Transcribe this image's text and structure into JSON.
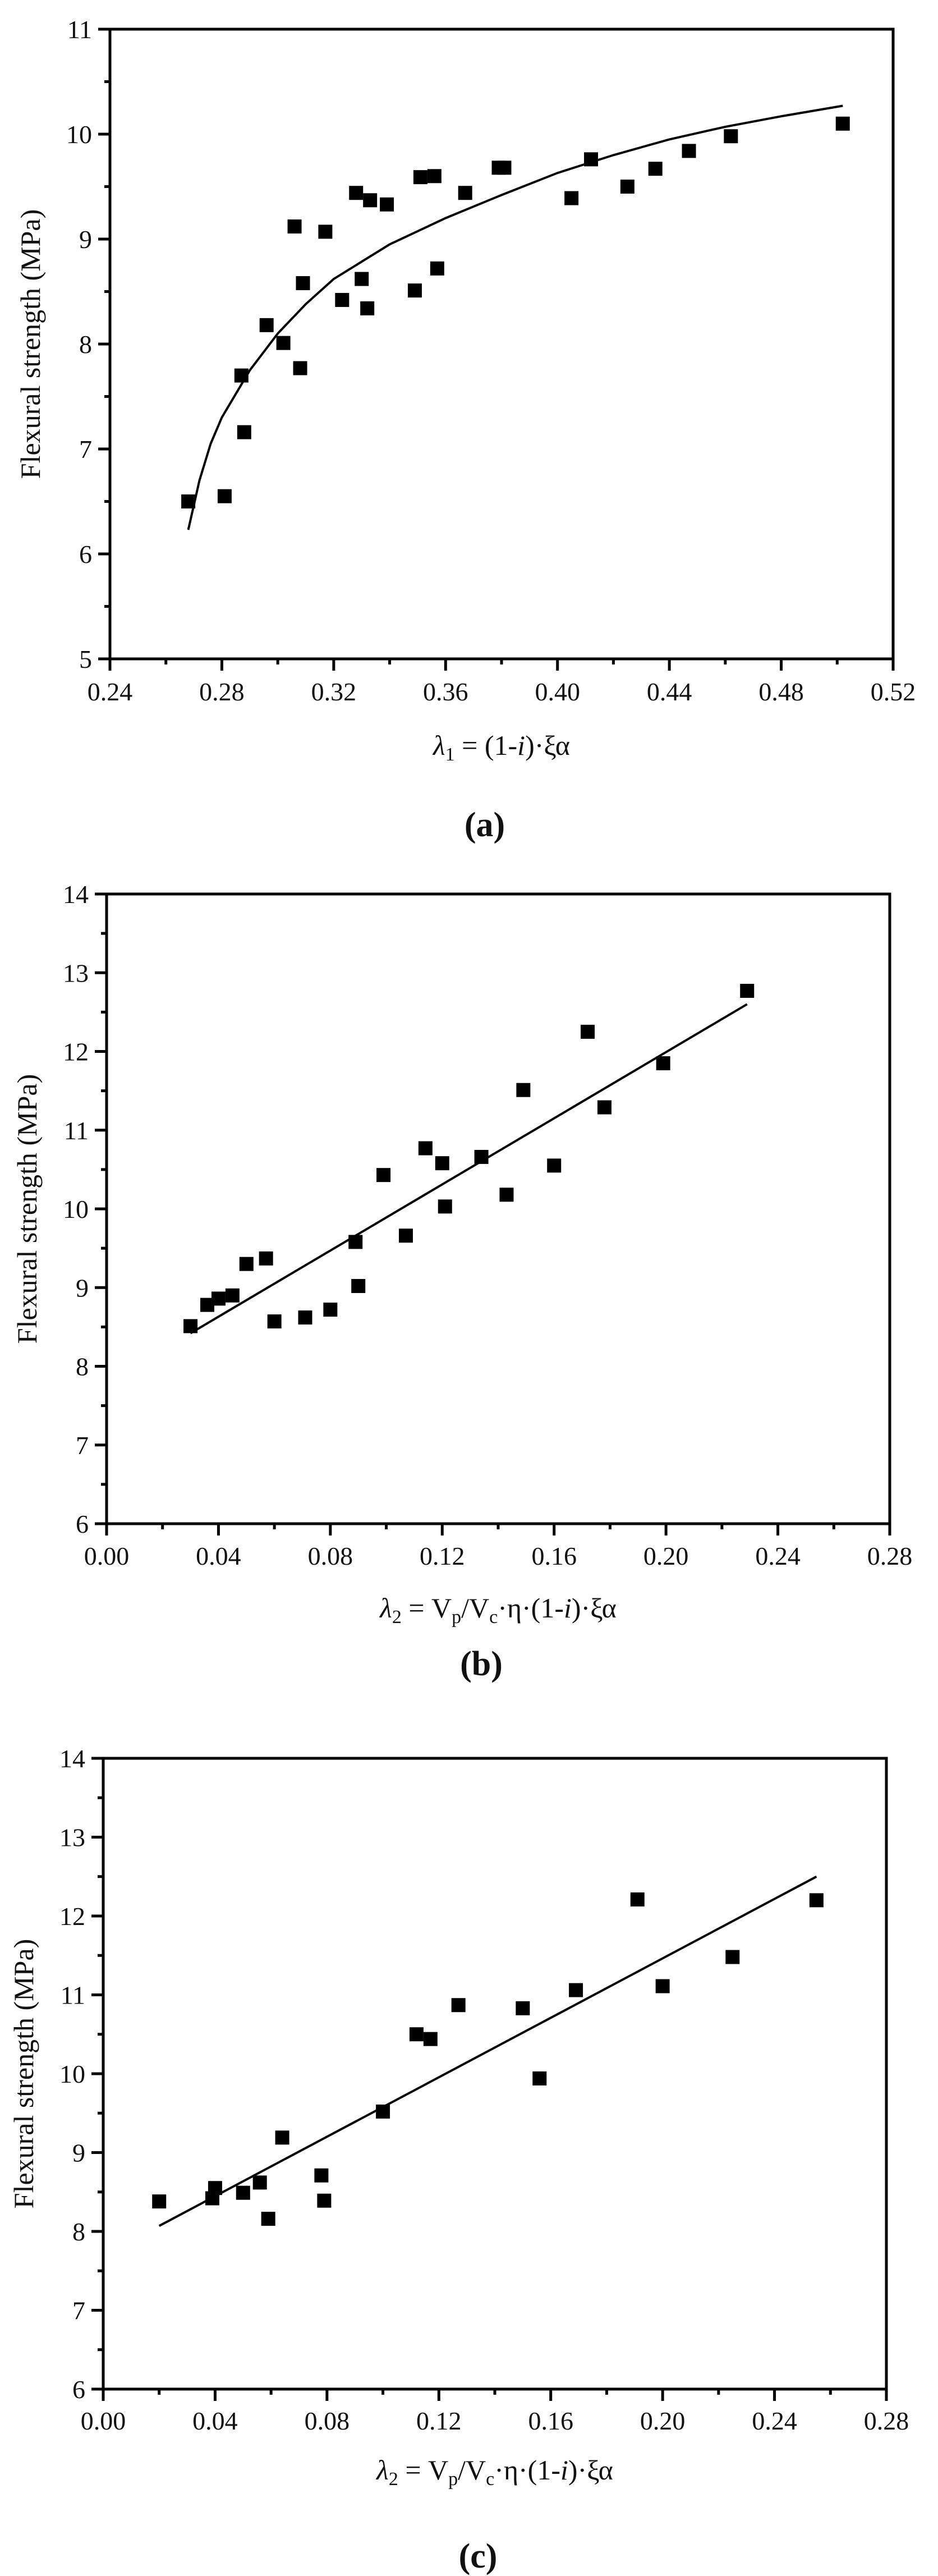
{
  "chart_data": [
    {
      "type": "scatter",
      "caption": "(a)",
      "ylabel": "Flexural strength (MPa)",
      "xlabel_parts": [
        {
          "t": "λ",
          "italic": true
        },
        {
          "t": "1",
          "sub": true
        },
        {
          "t": " = (1-"
        },
        {
          "t": "i",
          "italic": true
        },
        {
          "t": ")·ξα"
        }
      ],
      "xlim": [
        0.24,
        0.52
      ],
      "ylim": [
        5,
        11
      ],
      "xticks": [
        "0.24",
        "0.28",
        "0.32",
        "0.36",
        "0.40",
        "0.44",
        "0.48",
        "0.52"
      ],
      "yticks": [
        "5",
        "6",
        "7",
        "8",
        "9",
        "10",
        "11"
      ],
      "grid": false,
      "marker": "square",
      "color": "#000000",
      "points": [
        [
          0.268,
          6.5
        ],
        [
          0.281,
          6.55
        ],
        [
          0.287,
          7.7
        ],
        [
          0.288,
          7.16
        ],
        [
          0.296,
          8.18
        ],
        [
          0.302,
          8.01
        ],
        [
          0.306,
          9.12
        ],
        [
          0.308,
          7.77
        ],
        [
          0.309,
          8.58
        ],
        [
          0.317,
          9.07
        ],
        [
          0.323,
          8.42
        ],
        [
          0.328,
          9.44
        ],
        [
          0.33,
          8.62
        ],
        [
          0.333,
          9.37
        ],
        [
          0.332,
          8.34
        ],
        [
          0.339,
          9.33
        ],
        [
          0.349,
          8.51
        ],
        [
          0.351,
          9.59
        ],
        [
          0.356,
          9.6
        ],
        [
          0.357,
          8.72
        ],
        [
          0.367,
          9.44
        ],
        [
          0.379,
          9.68
        ],
        [
          0.381,
          9.68
        ],
        [
          0.405,
          9.39
        ],
        [
          0.412,
          9.76
        ],
        [
          0.425,
          9.5
        ],
        [
          0.435,
          9.67
        ],
        [
          0.447,
          9.84
        ],
        [
          0.462,
          9.98
        ],
        [
          0.502,
          10.1
        ]
      ],
      "fit_type": "curve",
      "fit": [
        [
          0.268,
          6.23
        ],
        [
          0.272,
          6.7
        ],
        [
          0.276,
          7.05
        ],
        [
          0.28,
          7.3
        ],
        [
          0.29,
          7.75
        ],
        [
          0.3,
          8.1
        ],
        [
          0.31,
          8.38
        ],
        [
          0.32,
          8.62
        ],
        [
          0.34,
          8.95
        ],
        [
          0.36,
          9.2
        ],
        [
          0.38,
          9.42
        ],
        [
          0.4,
          9.63
        ],
        [
          0.42,
          9.8
        ],
        [
          0.44,
          9.95
        ],
        [
          0.46,
          10.07
        ],
        [
          0.48,
          10.17
        ],
        [
          0.502,
          10.27
        ]
      ]
    },
    {
      "type": "scatter",
      "caption": "(b)",
      "ylabel": "Flexural strength (MPa)",
      "xlabel_parts": [
        {
          "t": "λ",
          "italic": true
        },
        {
          "t": "2",
          "sub": true
        },
        {
          "t": " = V"
        },
        {
          "t": "p",
          "sub": true
        },
        {
          "t": "/V"
        },
        {
          "t": "c",
          "sub": true
        },
        {
          "t": "·η·(1-"
        },
        {
          "t": "i",
          "italic": true
        },
        {
          "t": ")·ξα"
        }
      ],
      "xlim": [
        0.0,
        0.28
      ],
      "ylim": [
        6,
        14
      ],
      "xticks": [
        "0.00",
        "0.04",
        "0.08",
        "0.12",
        "0.16",
        "0.20",
        "0.24",
        "0.28"
      ],
      "yticks": [
        "6",
        "7",
        "8",
        "9",
        "10",
        "11",
        "12",
        "13",
        "14"
      ],
      "grid": false,
      "marker": "square",
      "color": "#000000",
      "points": [
        [
          0.03,
          8.51
        ],
        [
          0.036,
          8.78
        ],
        [
          0.04,
          8.86
        ],
        [
          0.045,
          8.9
        ],
        [
          0.05,
          9.3
        ],
        [
          0.057,
          9.37
        ],
        [
          0.06,
          8.57
        ],
        [
          0.071,
          8.62
        ],
        [
          0.08,
          8.72
        ],
        [
          0.089,
          9.58
        ],
        [
          0.09,
          9.02
        ],
        [
          0.099,
          10.43
        ],
        [
          0.107,
          9.66
        ],
        [
          0.114,
          10.77
        ],
        [
          0.12,
          10.58
        ],
        [
          0.121,
          10.03
        ],
        [
          0.134,
          10.66
        ],
        [
          0.143,
          10.18
        ],
        [
          0.149,
          11.51
        ],
        [
          0.16,
          10.55
        ],
        [
          0.172,
          12.25
        ],
        [
          0.178,
          11.29
        ],
        [
          0.199,
          11.85
        ],
        [
          0.229,
          12.77
        ]
      ],
      "fit_type": "line",
      "fit": [
        [
          0.03,
          8.42
        ],
        [
          0.229,
          12.6
        ]
      ]
    },
    {
      "type": "scatter",
      "caption": "(c)",
      "ylabel": "Flexural strength (MPa)",
      "xlabel_parts": [
        {
          "t": "λ",
          "italic": true
        },
        {
          "t": "2",
          "sub": true
        },
        {
          "t": " = V"
        },
        {
          "t": "p",
          "sub": true
        },
        {
          "t": "/V"
        },
        {
          "t": "c",
          "sub": true
        },
        {
          "t": "·η·(1-"
        },
        {
          "t": "i",
          "italic": true
        },
        {
          "t": ")·ξα"
        }
      ],
      "xlim": [
        0.0,
        0.28
      ],
      "ylim": [
        6,
        14
      ],
      "xticks": [
        "0.00",
        "0.04",
        "0.08",
        "0.12",
        "0.16",
        "0.20",
        "0.24",
        "0.28"
      ],
      "yticks": [
        "6",
        "7",
        "8",
        "9",
        "10",
        "11",
        "12",
        "13",
        "14"
      ],
      "grid": false,
      "marker": "square",
      "color": "#000000",
      "points": [
        [
          0.02,
          8.38
        ],
        [
          0.039,
          8.42
        ],
        [
          0.04,
          8.55
        ],
        [
          0.05,
          8.49
        ],
        [
          0.056,
          8.62
        ],
        [
          0.059,
          8.16
        ],
        [
          0.064,
          9.19
        ],
        [
          0.078,
          8.71
        ],
        [
          0.079,
          8.39
        ],
        [
          0.1,
          9.52
        ],
        [
          0.112,
          10.5
        ],
        [
          0.117,
          10.44
        ],
        [
          0.127,
          10.87
        ],
        [
          0.15,
          10.83
        ],
        [
          0.156,
          9.94
        ],
        [
          0.169,
          11.06
        ],
        [
          0.191,
          12.21
        ],
        [
          0.2,
          11.11
        ],
        [
          0.225,
          11.48
        ],
        [
          0.255,
          12.2
        ]
      ],
      "fit_type": "line",
      "fit": [
        [
          0.02,
          8.07
        ],
        [
          0.255,
          12.5
        ]
      ]
    }
  ]
}
